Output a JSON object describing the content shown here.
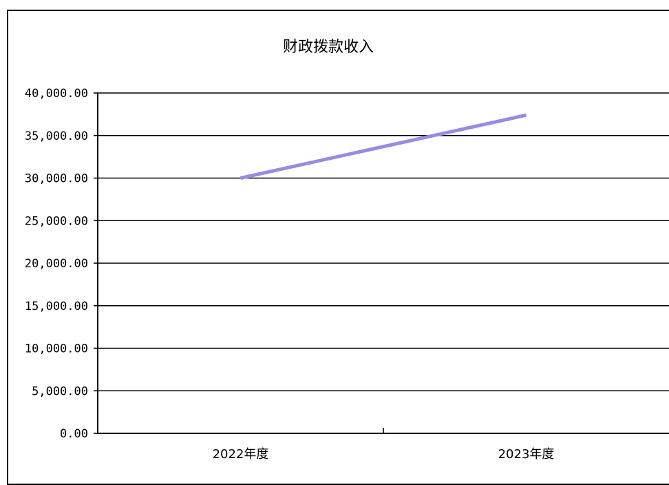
{
  "chart_data": {
    "type": "line",
    "title": "财政拨款收入",
    "xlabel": "",
    "ylabel": "",
    "categories": [
      "2022年度",
      "2023年度"
    ],
    "series": [
      {
        "values": [
          30000.0,
          37400.0
        ],
        "color": "#9b89e3"
      }
    ],
    "ylim": [
      0,
      40000
    ],
    "yticks": [
      0,
      5000,
      10000,
      15000,
      20000,
      25000,
      30000,
      35000,
      40000
    ],
    "ytick_labels": [
      "0.00",
      "5,000.00",
      "10,000.00",
      "15,000.00",
      "20,000.00",
      "25,000.00",
      "30,000.00",
      "35,000.00",
      "40,000.00"
    ],
    "grid": true,
    "legend": "none"
  }
}
